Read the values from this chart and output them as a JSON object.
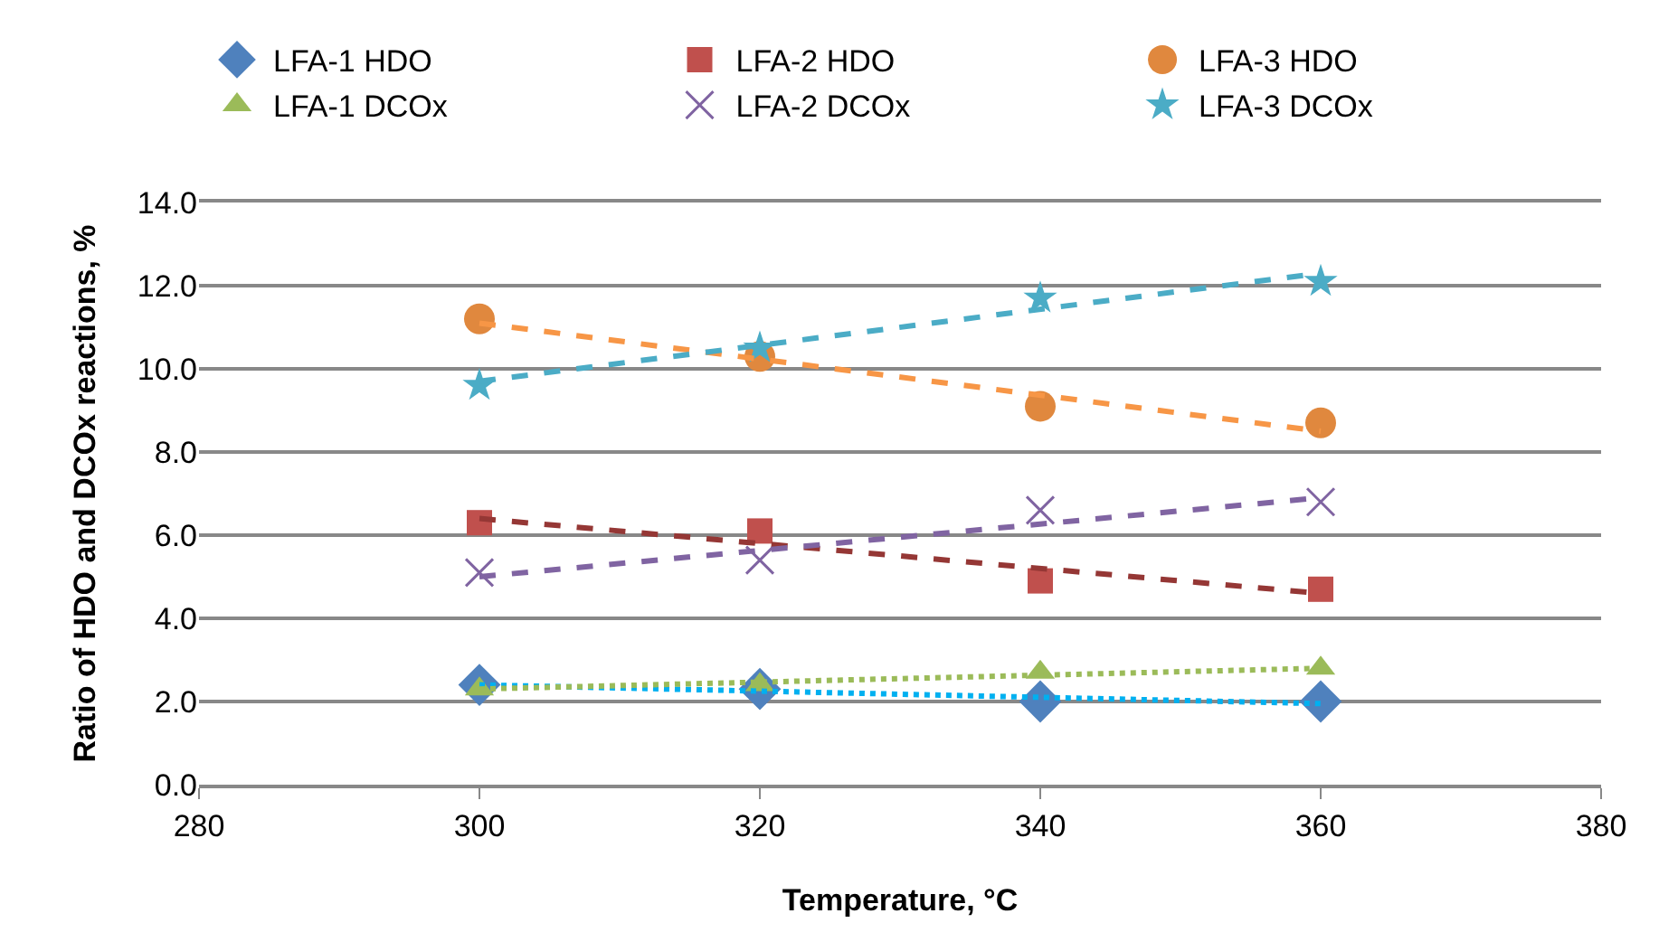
{
  "chart_data": {
    "type": "scatter",
    "xlabel": "Temperature, °C",
    "ylabel": "Ratio of HDO and DCOx reactions, %",
    "x": [
      300,
      320,
      340,
      360
    ],
    "series": [
      {
        "name": "LFA-1 HDO",
        "color": "#4f81bd",
        "marker": "diamond",
        "values": [
          2.4,
          2.3,
          2.0,
          2.0
        ]
      },
      {
        "name": "LFA-2 HDO",
        "color": "#c0504d",
        "marker": "square",
        "values": [
          6.3,
          6.1,
          4.9,
          4.7
        ]
      },
      {
        "name": "LFA-3 HDO",
        "color": "#e0883e",
        "marker": "circle",
        "values": [
          11.2,
          10.3,
          9.1,
          8.7
        ]
      },
      {
        "name": "LFA-1 DCOx",
        "color": "#9bbb59",
        "marker": "triangle",
        "values": [
          2.3,
          2.4,
          2.7,
          2.8
        ]
      },
      {
        "name": "LFA-2 DCOx",
        "color": "#8064a2",
        "marker": "cross",
        "values": [
          5.1,
          5.4,
          6.6,
          6.8
        ]
      },
      {
        "name": "LFA-3 DCOx",
        "color": "#4bacc6",
        "marker": "star",
        "values": [
          9.6,
          10.5,
          11.7,
          12.1
        ]
      },
      {
        "type": "line",
        "color": "#00b0f0",
        "line_style": "dotted",
        "values": [
          2.4,
          null,
          null,
          1.95
        ]
      },
      {
        "type": "line",
        "color": "#953735",
        "line_style": "dashed",
        "values": [
          6.4,
          null,
          null,
          4.6
        ]
      },
      {
        "type": "line",
        "color": "#f79646",
        "line_style": "dashed",
        "values": [
          11.1,
          null,
          null,
          8.5
        ]
      },
      {
        "type": "line",
        "color": "#9bbb59",
        "line_style": "dotted",
        "values": [
          2.3,
          null,
          null,
          2.8
        ]
      },
      {
        "type": "line",
        "color": "#8064a2",
        "line_style": "dashed",
        "values": [
          5.0,
          null,
          null,
          6.9
        ]
      },
      {
        "type": "line",
        "color": "#4bacc6",
        "line_style": "dashed",
        "values": [
          9.7,
          null,
          null,
          12.3
        ]
      }
    ],
    "xlim": [
      280,
      380
    ],
    "xticks": [
      280,
      300,
      320,
      340,
      360,
      380
    ],
    "ylim": [
      0,
      14
    ],
    "yticks": [
      {
        "value": 0,
        "label": "0.0"
      },
      {
        "value": 2,
        "label": "2.0"
      },
      {
        "value": 4,
        "label": "4.0"
      },
      {
        "value": 6,
        "label": "6.0"
      },
      {
        "value": 8,
        "label": "8.0"
      },
      {
        "value": 10,
        "label": "10.0"
      },
      {
        "value": 12,
        "label": "12.0"
      },
      {
        "value": 14,
        "label": "14.0"
      }
    ],
    "grid": "y",
    "legend": "top"
  }
}
